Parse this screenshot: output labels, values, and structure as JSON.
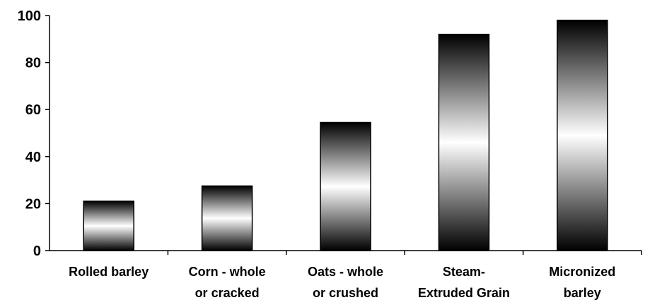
{
  "chart_data": {
    "type": "bar",
    "title": "",
    "xlabel": "",
    "ylabel": "",
    "categories": [
      [
        "Rolled barley"
      ],
      [
        "Corn - whole",
        "or cracked"
      ],
      [
        "Oats - whole",
        "or crushed"
      ],
      [
        "Steam-",
        "Extruded Grain"
      ],
      [
        "Micronized",
        "barley"
      ]
    ],
    "values": [
      21,
      27.5,
      54.5,
      92,
      98
    ],
    "ylim": [
      0,
      100
    ],
    "yticks": [
      "0",
      "20",
      "40",
      "60",
      "80",
      "100"
    ],
    "grid": false,
    "legend": "none",
    "bar_gradient": {
      "edge": "#000000",
      "center": "#ffffff"
    }
  }
}
